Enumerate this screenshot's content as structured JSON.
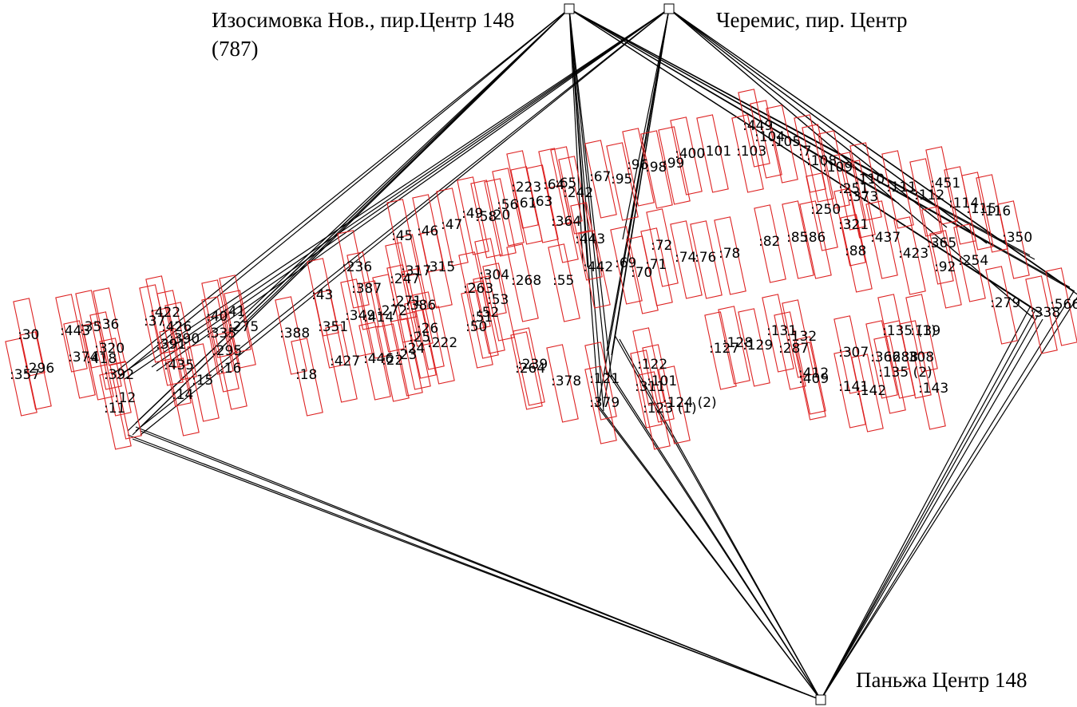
{
  "nodes": [
    {
      "label": "Изосимовка Нов., пир.Центр 148",
      "sublabel": "(787)"
    },
    {
      "label": "Черемис, пир. Центр"
    },
    {
      "label": "Паньжа Центр 148"
    }
  ],
  "parcels": [
    ":30",
    ":443",
    ":35",
    ":36",
    ":374",
    ":418",
    ":320",
    ":357",
    ":296",
    ":392",
    ":12",
    ":11",
    ":37",
    ":422",
    ":426",
    ":391",
    ":390",
    ":435",
    ":14",
    ":15",
    ":40",
    ":41",
    ":335",
    ":275",
    ":295",
    ":16",
    ":388",
    ":18",
    ":351",
    ":43",
    ":236",
    ":387",
    ":349",
    ":414",
    ":272",
    ":271",
    ":386",
    ":427",
    ":446",
    ":22",
    ":23",
    ":24",
    ":25",
    ":26",
    ":222",
    ":50",
    ":51",
    ":52",
    ":53",
    ":263",
    ":304",
    ":268",
    ":55",
    ":247",
    ":317",
    ":315",
    ":45",
    ":46",
    ":47",
    ":49",
    ":58",
    ":20",
    ":56",
    ":61",
    ":63",
    ":223",
    ":64",
    ":65",
    ":242",
    ":67",
    ":95",
    ":96",
    ":98",
    ":99",
    ":400",
    ":101",
    ":103",
    ":449",
    ":104",
    ":105",
    ":7",
    ":108",
    ":109",
    ":251",
    ":110",
    ":111",
    ":112",
    ":451",
    ":114",
    ":115",
    ":116",
    ":350",
    ":373",
    ":250",
    ":321",
    ":86",
    ":85",
    ":82",
    ":78",
    ":76",
    ":74",
    ":72",
    ":71",
    ":70",
    ":69",
    ":442",
    ":88",
    ":423",
    ":437",
    ":92",
    ":365",
    ":254",
    ":279",
    ":338",
    ":566",
    ":364",
    ":443",
    ":131",
    ":132",
    ":135 (1)",
    ":139",
    ":288",
    ":308",
    ":143",
    ":142",
    ":141",
    ":135 (2)",
    ":409",
    ":412",
    ":128",
    ":129",
    ":127",
    ":122",
    ":121",
    ":378",
    ":239",
    ":264",
    ":379",
    ":311",
    ":101",
    ":124 (2)",
    ":123 (1)",
    ":287",
    ":307",
    ":366"
  ]
}
